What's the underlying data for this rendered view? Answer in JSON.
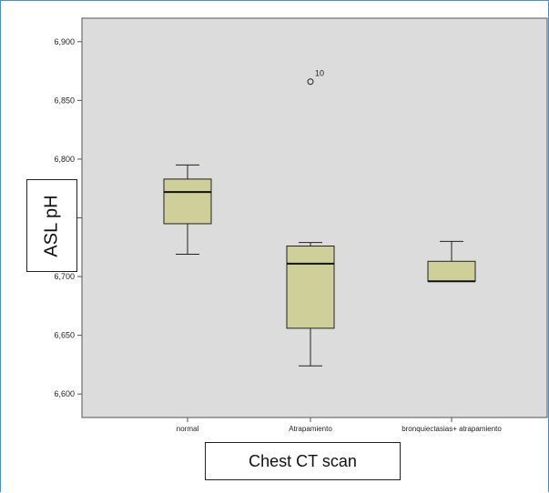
{
  "chart_data": {
    "type": "box",
    "categories": [
      "normal",
      "Atrapamiento",
      "bronquiectasias+ atrapamiento"
    ],
    "ylim": [
      6.58,
      6.92
    ],
    "yticks": [
      "6,600",
      "6,650",
      "6,700",
      "6,750",
      "6,800",
      "6,850",
      "6,900"
    ],
    "ytick_values": [
      6.6,
      6.65,
      6.7,
      6.75,
      6.8,
      6.85,
      6.9
    ],
    "boxes": [
      {
        "category": "normal",
        "whisker_low": 6.719,
        "q1": 6.745,
        "median": 6.772,
        "q3": 6.783,
        "whisker_high": 6.795
      },
      {
        "category": "Atrapamiento",
        "whisker_low": 6.624,
        "q1": 6.656,
        "median": 6.711,
        "q3": 6.726,
        "whisker_high": 6.729
      },
      {
        "category": "bronquiectasias+ atrapamiento",
        "whisker_low": 6.696,
        "q1": 6.696,
        "median": 6.696,
        "q3": 6.713,
        "whisker_high": 6.73
      }
    ],
    "outliers": [
      {
        "category": "Atrapamiento",
        "value": 6.866,
        "label": "10"
      }
    ],
    "xlabel": "Chest CT scan",
    "ylabel": "ASL pH",
    "colors": {
      "plot_bg": "#dcdcdc",
      "box_fill": "#cfcf99",
      "frame": "#4a8fc9"
    }
  }
}
